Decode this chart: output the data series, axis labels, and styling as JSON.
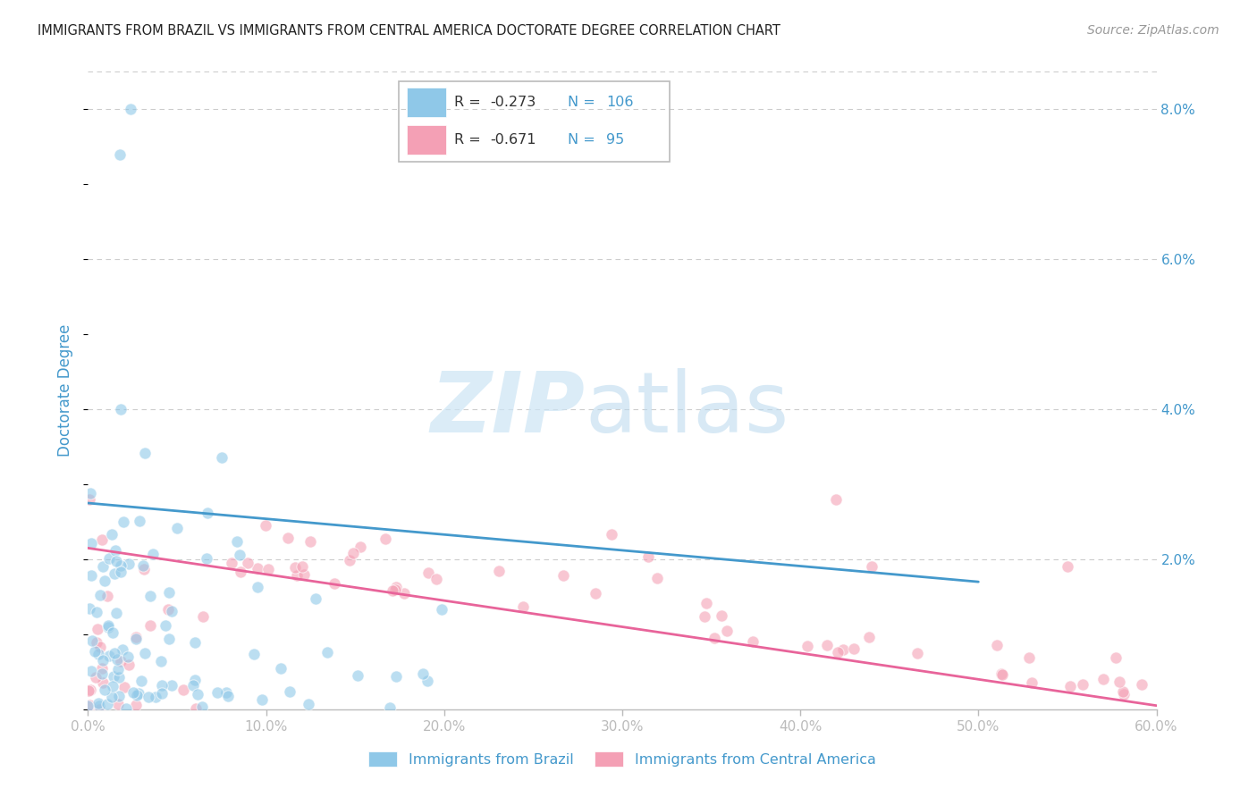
{
  "title": "IMMIGRANTS FROM BRAZIL VS IMMIGRANTS FROM CENTRAL AMERICA DOCTORATE DEGREE CORRELATION CHART",
  "source": "Source: ZipAtlas.com",
  "ylabel": "Doctorate Degree",
  "xlim": [
    0.0,
    0.6
  ],
  "ylim": [
    0.0,
    0.085
  ],
  "xticks": [
    0.0,
    0.1,
    0.2,
    0.3,
    0.4,
    0.5,
    0.6
  ],
  "xticklabels": [
    "0.0%",
    "10.0%",
    "20.0%",
    "30.0%",
    "40.0%",
    "50.0%",
    "60.0%"
  ],
  "yticks_right": [
    0.0,
    0.02,
    0.04,
    0.06,
    0.08
  ],
  "ytick_right_labels": [
    "",
    "2.0%",
    "4.0%",
    "6.0%",
    "8.0%"
  ],
  "legend_R1": "-0.273",
  "legend_N1": "106",
  "legend_R2": "-0.671",
  "legend_N2": "95",
  "blue_color": "#8fc8e8",
  "pink_color": "#f4a0b5",
  "blue_line_color": "#4499cc",
  "pink_line_color": "#e8649a",
  "text_color": "#4499cc",
  "background_color": "#ffffff",
  "grid_color": "#cccccc",
  "brazil_trend_x": [
    0.0,
    0.5
  ],
  "brazil_trend_y": [
    0.0275,
    0.017
  ],
  "central_trend_x": [
    0.0,
    0.6
  ],
  "central_trend_y": [
    0.0215,
    0.0005
  ]
}
